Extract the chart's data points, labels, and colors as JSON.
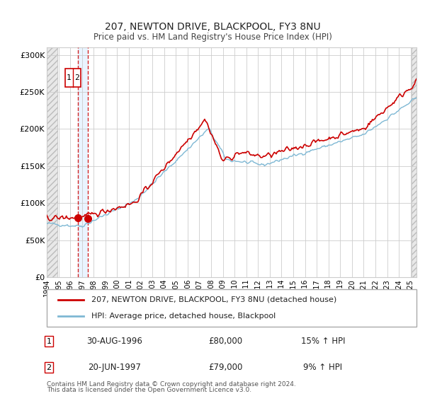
{
  "title": "207, NEWTON DRIVE, BLACKPOOL, FY3 8NU",
  "subtitle": "Price paid vs. HM Land Registry's House Price Index (HPI)",
  "legend1": "207, NEWTON DRIVE, BLACKPOOL, FY3 8NU (detached house)",
  "legend2": "HPI: Average price, detached house, Blackpool",
  "sale1_date": "30-AUG-1996",
  "sale1_price": "£80,000",
  "sale1_hpi": "15% ↑ HPI",
  "sale2_date": "20-JUN-1997",
  "sale2_price": "£79,000",
  "sale2_hpi": "9% ↑ HPI",
  "sale1_year": 1996.67,
  "sale2_year": 1997.47,
  "sale1_value": 80000,
  "sale2_value": 79000,
  "footnote1": "Contains HM Land Registry data © Crown copyright and database right 2024.",
  "footnote2": "This data is licensed under the Open Government Licence v3.0.",
  "red_color": "#cc0000",
  "blue_color": "#7eb8d4",
  "grid_color": "#cccccc",
  "ylim_max": 310000,
  "ylim_min": 0,
  "xmin": 1994.0,
  "xmax": 2025.5,
  "hatch_left_end": 1994.92,
  "hatch_right_start": 2025.08
}
